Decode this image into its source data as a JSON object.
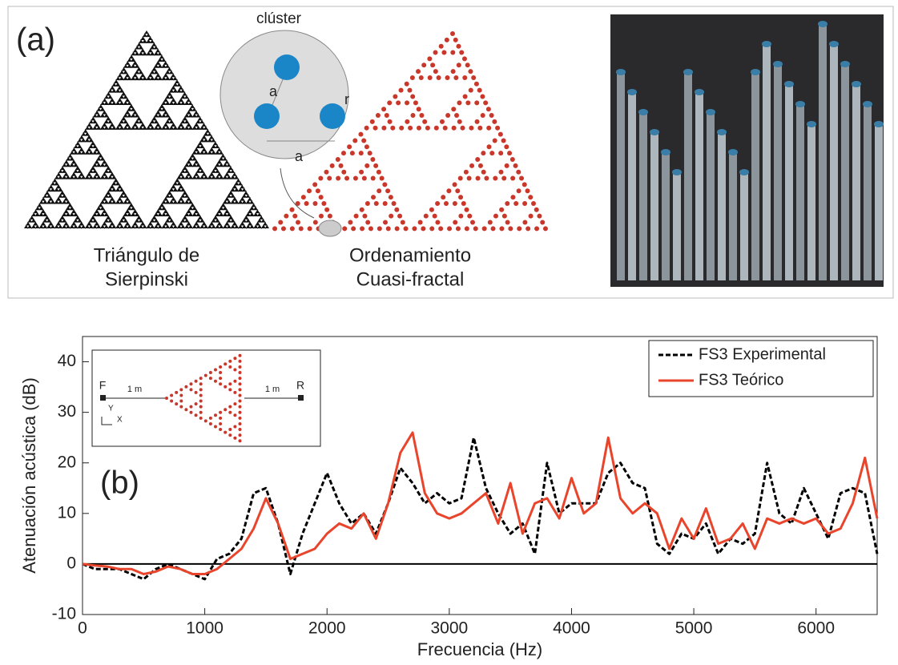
{
  "panel_a": {
    "label": "(a)",
    "cluster_title": "clúster",
    "cluster_side_label": "a",
    "cluster_base_label": "a",
    "cluster_radius_label": "r",
    "left_caption": [
      "Triángulo de",
      "Sierpinski"
    ],
    "middle_caption": [
      "Ordenamiento",
      "Cuasi-fractal"
    ]
  },
  "inset": {
    "source": "F",
    "receiver": "R",
    "distance_left": "1 m",
    "distance_right": "1 m",
    "axis_y": "Y",
    "axis_x": "X"
  },
  "chart_data": {
    "type": "line",
    "panel_label": "(b)",
    "x_label": "Frecuencia (Hz)",
    "y_label": "Atenuación acústica (dB)",
    "x": [
      0,
      100,
      200,
      300,
      400,
      500,
      600,
      700,
      800,
      900,
      1000,
      1100,
      1200,
      1300,
      1400,
      1500,
      1600,
      1700,
      1800,
      1900,
      2000,
      2100,
      2200,
      2300,
      2400,
      2500,
      2600,
      2700,
      2800,
      2900,
      3000,
      3100,
      3200,
      3300,
      3400,
      3500,
      3600,
      3700,
      3800,
      3900,
      4000,
      4100,
      4200,
      4300,
      4400,
      4500,
      4600,
      4700,
      4800,
      4900,
      5000,
      5100,
      5200,
      5300,
      5400,
      5500,
      5600,
      5700,
      5800,
      5900,
      6000,
      6100,
      6200,
      6300,
      6400,
      6500
    ],
    "series": [
      {
        "name": "FS3 Experimental",
        "color": "#000000",
        "dash": true,
        "values": [
          0,
          -1,
          -1,
          -1,
          -2,
          -3,
          -1,
          0,
          -1,
          -2,
          -3,
          1,
          2,
          5,
          14,
          15,
          8,
          -2,
          6,
          12,
          18,
          12,
          8,
          10,
          6,
          12,
          19,
          16,
          12,
          14,
          12,
          13,
          25,
          15,
          10,
          6,
          8,
          2,
          20,
          10,
          12,
          12,
          12,
          18,
          20,
          16,
          15,
          4,
          2,
          6,
          5,
          8,
          2,
          5,
          4,
          6,
          20,
          10,
          8,
          15,
          10,
          5,
          14,
          15,
          14,
          2
        ]
      },
      {
        "name": "FS3 Teórico",
        "color": "#e8452c",
        "dash": false,
        "values": [
          0,
          -0.3,
          -0.5,
          -1,
          -1,
          -2,
          -1.5,
          -0.5,
          -1,
          -2,
          -2,
          -1,
          1,
          3,
          7,
          13,
          8,
          1,
          2,
          3,
          6,
          8,
          7,
          10,
          5,
          12,
          22,
          26,
          14,
          10,
          9,
          10,
          12,
          14,
          8,
          16,
          6,
          12,
          13,
          9,
          17,
          10,
          12,
          25,
          13,
          10,
          12,
          10,
          3,
          9,
          5,
          11,
          4,
          5,
          8,
          3,
          9,
          8,
          9,
          8,
          9,
          6,
          7,
          12,
          21,
          9
        ]
      }
    ],
    "xlim": [
      0,
      6500
    ],
    "xticks": [
      0,
      1000,
      2000,
      3000,
      4000,
      5000,
      6000
    ],
    "ylim": [
      -10,
      45
    ],
    "yticks": [
      -10,
      0,
      10,
      20,
      30,
      40
    ],
    "zero_line": true,
    "legend": "top-right"
  }
}
